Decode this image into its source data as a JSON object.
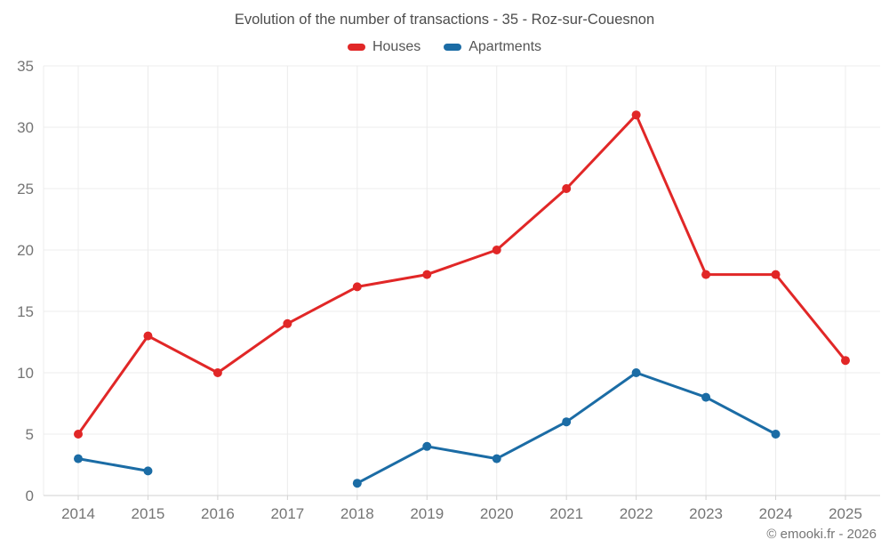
{
  "chart_data": {
    "type": "line",
    "title": "Evolution of the number of transactions - 35 - Roz-sur-Couesnon",
    "x": [
      2014,
      2015,
      2016,
      2017,
      2018,
      2019,
      2020,
      2021,
      2022,
      2023,
      2024,
      2025
    ],
    "series": [
      {
        "name": "Houses",
        "color": "#e12727",
        "values": [
          5,
          13,
          10,
          14,
          17,
          18,
          20,
          25,
          31,
          18,
          18,
          11
        ]
      },
      {
        "name": "Apartments",
        "color": "#1b6ca5",
        "values": [
          3,
          2,
          null,
          null,
          1,
          4,
          3,
          6,
          10,
          8,
          5,
          null
        ]
      }
    ],
    "xlabel": "",
    "ylabel": "",
    "ylim": [
      0,
      35
    ],
    "yticks": [
      0,
      5,
      10,
      15,
      20,
      25,
      30,
      35
    ],
    "grid": true,
    "legend_position": "top"
  },
  "footer": {
    "copyright": "© emooki.fr - 2026"
  },
  "colors": {
    "grid": "#ececec",
    "axis": "#d2d2d2",
    "tick_label": "#757575",
    "title_text": "#4d4d4d",
    "legend_text": "#555555",
    "footer_text": "#757575",
    "background": "#ffffff"
  }
}
